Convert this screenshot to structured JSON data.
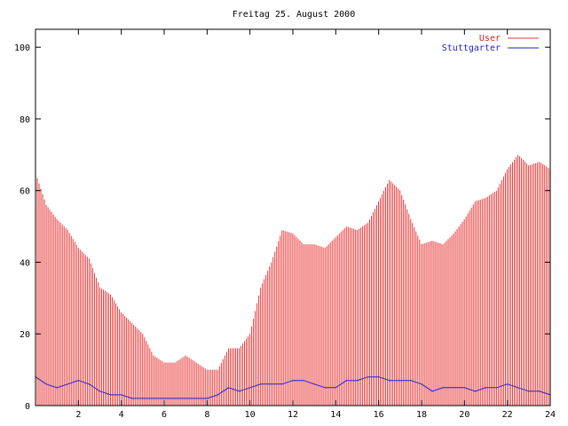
{
  "chart_data": {
    "type": "bar",
    "title": "Freitag 25. August 2000",
    "xlabel": "",
    "ylabel": "",
    "xlim": [
      0,
      24
    ],
    "ylim": [
      0,
      105
    ],
    "x_ticks": [
      2,
      4,
      6,
      8,
      10,
      12,
      14,
      16,
      18,
      20,
      22,
      24
    ],
    "y_ticks": [
      0,
      20,
      40,
      60,
      80,
      100
    ],
    "grid": false,
    "legend_position": "top-right",
    "series": [
      {
        "name": "User",
        "style": "impulses",
        "color": "#e83a3a",
        "x": [
          0.0,
          0.5,
          1.0,
          1.5,
          2.0,
          2.5,
          3.0,
          3.5,
          4.0,
          4.5,
          5.0,
          5.5,
          6.0,
          6.5,
          7.0,
          7.5,
          8.0,
          8.5,
          9.0,
          9.5,
          10.0,
          10.5,
          11.0,
          11.5,
          12.0,
          12.5,
          13.0,
          13.5,
          14.0,
          14.5,
          15.0,
          15.5,
          16.0,
          16.5,
          17.0,
          17.5,
          18.0,
          18.5,
          19.0,
          19.5,
          20.0,
          20.5,
          21.0,
          21.5,
          22.0,
          22.5,
          23.0,
          23.5,
          24.0
        ],
        "values": [
          65,
          56,
          52,
          49,
          44,
          41,
          33,
          31,
          26,
          23,
          20,
          14,
          12,
          12,
          14,
          12,
          10,
          10,
          16,
          16,
          20,
          33,
          40,
          49,
          48,
          45,
          45,
          44,
          47,
          50,
          49,
          51,
          57,
          63,
          60,
          52,
          45,
          46,
          45,
          48,
          52,
          57,
          58,
          60,
          66,
          70,
          67,
          68,
          66
        ]
      },
      {
        "name": "Stuttgarter",
        "style": "line",
        "color": "#2222cc",
        "x": [
          0.0,
          0.5,
          1.0,
          1.5,
          2.0,
          2.5,
          3.0,
          3.5,
          4.0,
          4.5,
          5.0,
          5.5,
          6.0,
          6.5,
          7.0,
          7.5,
          8.0,
          8.5,
          9.0,
          9.5,
          10.0,
          10.5,
          11.0,
          11.5,
          12.0,
          12.5,
          13.0,
          13.5,
          14.0,
          14.5,
          15.0,
          15.5,
          16.0,
          16.5,
          17.0,
          17.5,
          18.0,
          18.5,
          19.0,
          19.5,
          20.0,
          20.5,
          21.0,
          21.5,
          22.0,
          22.5,
          23.0,
          23.5,
          24.0
        ],
        "values": [
          8,
          6,
          5,
          6,
          7,
          6,
          4,
          3,
          3,
          2,
          2,
          2,
          2,
          2,
          2,
          2,
          2,
          3,
          5,
          4,
          5,
          6,
          6,
          6,
          7,
          7,
          6,
          5,
          5,
          7,
          7,
          8,
          8,
          7,
          7,
          7,
          6,
          4,
          5,
          5,
          5,
          4,
          5,
          5,
          6,
          5,
          4,
          4,
          3
        ]
      }
    ]
  }
}
